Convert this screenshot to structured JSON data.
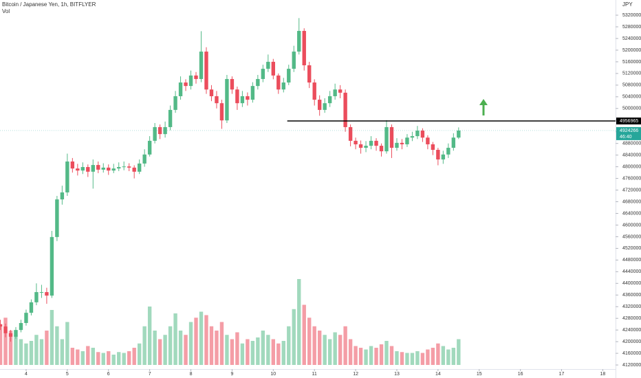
{
  "chart_data": {
    "type": "candlestick",
    "title": "Bitcoin / Japanese Yen, 1h, BITFLYER",
    "volume_label": "Vol",
    "currency": "JPY",
    "up_color": "#53b987",
    "down_color": "#eb4d5c",
    "x": [
      3.375,
      3.5,
      3.625,
      3.75,
      3.875,
      4,
      4.125,
      4.25,
      4.375,
      4.5,
      4.625,
      4.75,
      4.875,
      5,
      5.125,
      5.25,
      5.375,
      5.5,
      5.625,
      5.75,
      5.875,
      6,
      6.125,
      6.25,
      6.375,
      6.5,
      6.625,
      6.75,
      6.875,
      7,
      7.125,
      7.25,
      7.375,
      7.5,
      7.625,
      7.75,
      7.875,
      8,
      8.125,
      8.25,
      8.375,
      8.5,
      8.625,
      8.75,
      8.875,
      9,
      9.125,
      9.25,
      9.375,
      9.5,
      9.625,
      9.75,
      9.875,
      10,
      10.125,
      10.25,
      10.375,
      10.5,
      10.625,
      10.75,
      10.875,
      11,
      11.125,
      11.25,
      11.375,
      11.5,
      11.625,
      11.75,
      11.875,
      12,
      12.125,
      12.25,
      12.375,
      12.5,
      12.625,
      12.75,
      12.875,
      13,
      13.125,
      13.25,
      13.375,
      13.5,
      13.625,
      13.75,
      13.875,
      14,
      14.125,
      14.25,
      14.375,
      14.5
    ],
    "open": [
      4260000,
      4252000,
      4229000,
      4217000,
      4240000,
      4264000,
      4299000,
      4335000,
      4370000,
      4370000,
      4358000,
      4559000,
      4688000,
      4712000,
      4818000,
      4794000,
      4787000,
      4799000,
      4783000,
      4806000,
      4790000,
      4797000,
      4787000,
      4794000,
      4799000,
      4801000,
      4797000,
      4783000,
      4811000,
      4842000,
      4889000,
      4936000,
      4912000,
      4936000,
      4995000,
      5042000,
      5089000,
      5077000,
      5113000,
      5101000,
      5195000,
      5065000,
      5042000,
      5018000,
      4959000,
      5101000,
      5065000,
      5018000,
      5042000,
      5030000,
      5077000,
      5101000,
      5136000,
      5160000,
      5113000,
      5065000,
      5089000,
      5136000,
      5195000,
      5266000,
      5148000,
      5089000,
      5030000,
      4995000,
      5018000,
      5042000,
      5065000,
      5054000,
      4936000,
      4889000,
      4877000,
      4865000,
      4872000,
      4889000,
      4872000,
      4853000,
      4936000,
      4865000,
      4882000,
      4877000,
      4900000,
      4905000,
      4924000,
      4900000,
      4877000,
      4858000,
      4825000,
      4842000,
      4865000,
      4900000
    ],
    "high": [
      4275000,
      4262000,
      4240000,
      4250000,
      4275000,
      4310000,
      4345000,
      4400000,
      4395000,
      4385000,
      4580000,
      4700000,
      4735000,
      4845000,
      4830000,
      4810000,
      4815000,
      4808000,
      4825000,
      4818000,
      4812000,
      4808000,
      4810000,
      4815000,
      4818000,
      4812000,
      4805000,
      4825000,
      4860000,
      4905000,
      4950000,
      4945000,
      4955000,
      5010000,
      5060000,
      5110000,
      5100000,
      5130000,
      5125000,
      5265000,
      5210000,
      5080000,
      5060000,
      5030000,
      5115000,
      5110000,
      5075000,
      5060000,
      5055000,
      5090000,
      5115000,
      5150000,
      5185000,
      5170000,
      5120000,
      5105000,
      5150000,
      5215000,
      5310000,
      5275000,
      5160000,
      5100000,
      5045000,
      5035000,
      5060000,
      5085000,
      5080000,
      5065000,
      4945000,
      4900000,
      4890000,
      4888000,
      4905000,
      4898000,
      4880000,
      4960000,
      4945000,
      4898000,
      4895000,
      4912000,
      4920000,
      4940000,
      4932000,
      4908000,
      4885000,
      4865000,
      4855000,
      4880000,
      4915000,
      4935000
    ],
    "low": [
      4240000,
      4215000,
      4200000,
      4210000,
      4232000,
      4255000,
      4290000,
      4325000,
      4350000,
      4330000,
      4350000,
      4545000,
      4670000,
      4700000,
      4780000,
      4770000,
      4775000,
      4765000,
      4725000,
      4778000,
      4780000,
      4772000,
      4778000,
      4785000,
      4788000,
      4785000,
      4760000,
      4775000,
      4800000,
      4835000,
      4880000,
      4895000,
      4900000,
      4925000,
      4985000,
      5030000,
      5060000,
      5065000,
      5085000,
      5090000,
      5050000,
      5025000,
      5000000,
      4930000,
      4950000,
      5050000,
      4995000,
      5005000,
      5010000,
      5020000,
      5065000,
      5090000,
      5125000,
      5100000,
      5050000,
      5055000,
      5080000,
      5125000,
      5185000,
      5130000,
      5070000,
      5010000,
      4975000,
      4985000,
      5005000,
      5030000,
      5035000,
      4920000,
      4870000,
      4860000,
      4845000,
      4850000,
      4860000,
      4855000,
      4835000,
      4845000,
      4830000,
      4855000,
      4860000,
      4868000,
      4888000,
      4895000,
      4885000,
      4860000,
      4840000,
      4805000,
      4810000,
      4830000,
      4855000,
      4895000
    ],
    "close": [
      4252000,
      4229000,
      4217000,
      4240000,
      4264000,
      4299000,
      4335000,
      4370000,
      4370000,
      4358000,
      4559000,
      4688000,
      4712000,
      4818000,
      4794000,
      4787000,
      4799000,
      4783000,
      4806000,
      4790000,
      4797000,
      4787000,
      4794000,
      4799000,
      4801000,
      4797000,
      4783000,
      4811000,
      4842000,
      4889000,
      4936000,
      4912000,
      4936000,
      4995000,
      5042000,
      5089000,
      5077000,
      5113000,
      5101000,
      5195000,
      5065000,
      5042000,
      5018000,
      4959000,
      5101000,
      5065000,
      5018000,
      5042000,
      5030000,
      5077000,
      5101000,
      5136000,
      5160000,
      5113000,
      5065000,
      5089000,
      5136000,
      5195000,
      5266000,
      5148000,
      5089000,
      5030000,
      4995000,
      5018000,
      5042000,
      5065000,
      5054000,
      4936000,
      4889000,
      4877000,
      4865000,
      4872000,
      4889000,
      4872000,
      4853000,
      4936000,
      4865000,
      4882000,
      4877000,
      4900000,
      4905000,
      4924000,
      4900000,
      4877000,
      4858000,
      4825000,
      4842000,
      4865000,
      4900000,
      4924266
    ],
    "volume": [
      45,
      55,
      40,
      35,
      30,
      25,
      28,
      35,
      30,
      40,
      64,
      45,
      30,
      50,
      20,
      18,
      16,
      22,
      20,
      15,
      14,
      16,
      12,
      15,
      14,
      16,
      20,
      25,
      45,
      68,
      40,
      30,
      35,
      45,
      60,
      40,
      35,
      50,
      55,
      62,
      58,
      45,
      40,
      50,
      35,
      30,
      38,
      25,
      30,
      28,
      32,
      40,
      35,
      30,
      25,
      28,
      45,
      65,
      100,
      70,
      55,
      45,
      40,
      35,
      30,
      38,
      35,
      45,
      30,
      22,
      20,
      18,
      22,
      20,
      24,
      28,
      22,
      16,
      15,
      14,
      14,
      16,
      14,
      18,
      20,
      25,
      22,
      18,
      20,
      30
    ],
    "volume_lim": [
      0,
      100
    ],
    "xlim": [
      3.366,
      18.31
    ],
    "xticks": [
      4,
      5,
      6,
      7,
      8,
      9,
      10,
      11,
      12,
      13,
      14,
      15,
      16,
      17,
      18
    ],
    "ylim": [
      4106000,
      5372000
    ],
    "yticks": [
      4120000,
      4160000,
      4200000,
      4240000,
      4280000,
      4320000,
      4360000,
      4400000,
      4440000,
      4480000,
      4520000,
      4560000,
      4600000,
      4640000,
      4680000,
      4720000,
      4760000,
      4800000,
      4840000,
      4880000,
      4920000,
      4960000,
      5000000,
      5040000,
      5080000,
      5120000,
      5160000,
      5200000,
      5240000,
      5280000,
      5320000
    ],
    "level": {
      "value": 4956965,
      "start_x": 10.34
    },
    "last_price": 4924266,
    "countdown": "46:40"
  }
}
